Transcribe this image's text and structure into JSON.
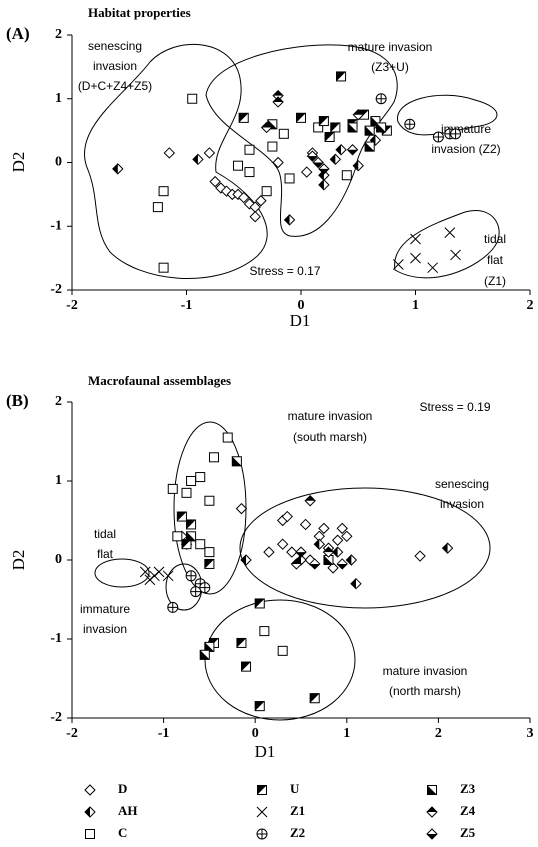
{
  "chart_data": [
    {
      "type": "scatter",
      "panel_label": "(A)",
      "title": "Habitat properties",
      "xlabel": "D1",
      "ylabel": "D2",
      "xlim": [
        -2,
        2
      ],
      "ylim": [
        -2,
        2
      ],
      "xticks": [
        -2,
        -1,
        0,
        1,
        2
      ],
      "yticks": [
        -2,
        -1,
        0,
        1,
        2
      ],
      "note": "Stress = 0.17",
      "annotations": [
        {
          "lines": [
            "senescing",
            "invasion",
            "(D+C+Z4+Z5)"
          ]
        },
        {
          "lines": [
            "mature invasion",
            "(Z3+U)"
          ]
        },
        {
          "lines": [
            "immature",
            "invasion (Z2)"
          ]
        },
        {
          "lines": [
            "tidal",
            "flat",
            "(Z1)"
          ]
        }
      ],
      "series": [
        {
          "name": "D",
          "marker": "diamond-open",
          "color": "#000000",
          "x": [
            -0.75,
            -0.7,
            -0.65,
            -0.6,
            -0.55,
            -0.5,
            -0.45,
            -0.4,
            -0.4,
            -0.35,
            -1.15,
            -0.2,
            0.05,
            0.1,
            -0.8
          ],
          "y": [
            -0.3,
            -0.4,
            -0.45,
            -0.5,
            -0.5,
            -0.55,
            -0.65,
            -0.7,
            -0.85,
            -0.6,
            0.15,
            0.0,
            -0.15,
            0.15,
            0.15
          ]
        },
        {
          "name": "AH",
          "marker": "diamond-left",
          "color": "#000000",
          "x": [
            -1.6,
            -0.9,
            -0.1,
            0.2,
            0.2,
            0.35,
            0.5,
            0.65,
            0.3
          ],
          "y": [
            -0.1,
            0.05,
            -0.9,
            -0.2,
            -0.35,
            0.2,
            -0.05,
            0.35,
            0.05
          ]
        },
        {
          "name": "C",
          "marker": "square-open",
          "color": "#000000",
          "x": [
            -0.95,
            -1.25,
            -1.2,
            -1.2,
            -0.45,
            -0.45,
            -0.3,
            -0.25,
            -0.15,
            0.15,
            0.4,
            -0.1,
            -0.55
          ],
          "y": [
            1.0,
            -0.7,
            -0.45,
            -1.65,
            0.2,
            -0.15,
            -0.45,
            0.25,
            0.45,
            0.55,
            -0.2,
            -0.25,
            -0.05
          ]
        },
        {
          "name": "U",
          "marker": "square-ul",
          "color": "#000000",
          "x": [
            0.35,
            -0.5,
            0.0,
            0.2,
            0.3,
            0.45,
            0.55,
            0.25,
            0.75
          ],
          "y": [
            1.35,
            0.7,
            0.7,
            0.65,
            0.55,
            0.6,
            0.75,
            0.4,
            0.5
          ]
        },
        {
          "name": "Z1",
          "marker": "cross",
          "color": "#000000",
          "x": [
            0.85,
            1.0,
            1.0,
            1.15,
            1.3,
            1.35
          ],
          "y": [
            -1.6,
            -1.2,
            -1.5,
            -1.65,
            -1.1,
            -1.45
          ]
        },
        {
          "name": "Z2",
          "marker": "circle-plus",
          "color": "#000000",
          "x": [
            0.7,
            0.95,
            1.2,
            1.3,
            1.35
          ],
          "y": [
            1.0,
            0.6,
            0.4,
            0.45,
            0.45
          ]
        },
        {
          "name": "Z3",
          "marker": "square-ll",
          "color": "#000000",
          "x": [
            0.6,
            0.65,
            0.7,
            0.45,
            -0.25,
            0.6
          ],
          "y": [
            0.5,
            0.65,
            0.55,
            0.55,
            0.6,
            0.25
          ]
        },
        {
          "name": "Z4",
          "marker": "diamond-top",
          "color": "#000000",
          "x": [
            -0.2,
            -0.2,
            -0.3,
            0.5
          ],
          "y": [
            1.05,
            0.95,
            0.55,
            0.75
          ]
        },
        {
          "name": "Z5",
          "marker": "diamond-bottom",
          "color": "#000000",
          "x": [
            0.1,
            0.2,
            0.15,
            0.45
          ],
          "y": [
            0.1,
            -0.1,
            0.0,
            0.2
          ]
        }
      ]
    },
    {
      "type": "scatter",
      "panel_label": "(B)",
      "title": "Macrofaunal assemblages",
      "xlabel": "D1",
      "ylabel": "D2",
      "xlim": [
        -2,
        3
      ],
      "ylim": [
        -2,
        2
      ],
      "xticks": [
        -2,
        -1,
        0,
        1,
        2,
        3
      ],
      "yticks": [
        -2,
        -1,
        0,
        1,
        2
      ],
      "note": "Stress = 0.19",
      "annotations": [
        {
          "lines": [
            "mature invasion",
            "(south marsh)"
          ]
        },
        {
          "lines": [
            "senescing",
            "invasion"
          ]
        },
        {
          "lines": [
            "tidal",
            "flat"
          ]
        },
        {
          "lines": [
            "immature",
            "invasion"
          ]
        },
        {
          "lines": [
            "mature invasion",
            "(north marsh)"
          ]
        }
      ],
      "series": [
        {
          "marker": "diamond-open",
          "color": "#000000",
          "x": [
            -0.15,
            0.3,
            0.35,
            0.55,
            0.7,
            0.75,
            0.8,
            0.9,
            0.95,
            1.0,
            0.6,
            0.4,
            0.3,
            0.15,
            1.8,
            -0.8,
            -0.75,
            0.85
          ],
          "y": [
            0.65,
            0.5,
            0.55,
            0.45,
            0.3,
            0.4,
            0.15,
            0.25,
            0.4,
            0.3,
            0.0,
            0.1,
            0.2,
            0.1,
            0.05,
            0.3,
            0.2,
            -0.1
          ]
        },
        {
          "marker": "diamond-left",
          "color": "#000000",
          "x": [
            -0.1,
            0.5,
            0.7,
            1.05,
            1.1,
            2.1,
            0.9
          ],
          "y": [
            0.0,
            0.0,
            0.2,
            0.0,
            -0.3,
            0.15,
            0.1
          ]
        },
        {
          "marker": "square-open",
          "color": "#000000",
          "x": [
            -0.9,
            -0.75,
            -0.7,
            -0.6,
            -0.5,
            -0.45,
            -0.3,
            -0.85,
            -0.5,
            0.1,
            0.3,
            -0.6
          ],
          "y": [
            0.9,
            0.85,
            1.0,
            1.05,
            0.75,
            1.3,
            1.55,
            0.3,
            0.1,
            -0.9,
            -1.15,
            0.2
          ]
        },
        {
          "marker": "square-ul",
          "color": "#000000",
          "x": [
            -0.8,
            -0.75,
            -0.7,
            -0.5,
            0.05,
            -0.15,
            -0.45,
            0.65,
            0.05,
            -0.1
          ],
          "y": [
            0.55,
            0.2,
            0.45,
            -0.05,
            -0.55,
            -1.05,
            -1.05,
            -1.75,
            -1.85,
            -1.35
          ]
        },
        {
          "marker": "cross",
          "color": "#000000",
          "x": [
            -1.2,
            -1.15,
            -1.1,
            -1.05,
            -0.95
          ],
          "y": [
            -0.15,
            -0.25,
            -0.2,
            -0.15,
            -0.2
          ]
        },
        {
          "marker": "circle-plus",
          "color": "#000000",
          "x": [
            -0.7,
            -0.6,
            -0.55,
            -0.65,
            -0.9
          ],
          "y": [
            -0.2,
            -0.3,
            -0.35,
            -0.4,
            -0.6
          ]
        },
        {
          "marker": "square-ll",
          "color": "#000000",
          "x": [
            -0.2,
            -0.7,
            -0.5,
            -0.55,
            0.8
          ],
          "y": [
            1.25,
            0.3,
            -1.1,
            -1.2,
            0.0
          ]
        },
        {
          "marker": "diamond-top",
          "color": "#000000",
          "x": [
            0.6,
            0.8,
            0.45
          ],
          "y": [
            0.75,
            0.1,
            -0.05
          ]
        },
        {
          "marker": "diamond-bottom",
          "color": "#000000",
          "x": [
            0.65,
            0.5,
            0.95
          ],
          "y": [
            -0.05,
            0.1,
            -0.05
          ]
        }
      ]
    }
  ]
}
